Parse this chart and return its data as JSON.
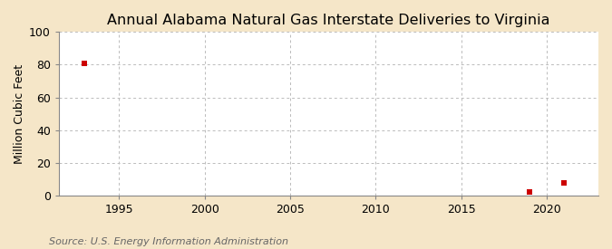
{
  "title": "Annual Alabama Natural Gas Interstate Deliveries to Virginia",
  "ylabel": "Million Cubic Feet",
  "source": "Source: U.S. Energy Information Administration",
  "figure_bg_color": "#f5e6c8",
  "plot_bg_color": "#ffffff",
  "grid_color": "#bbbbbb",
  "data_points": [
    {
      "year": 1993,
      "value": 81.0
    },
    {
      "year": 2019,
      "value": 2.0
    },
    {
      "year": 2021,
      "value": 8.0
    }
  ],
  "marker_color": "#cc0000",
  "marker_size": 5,
  "xlim": [
    1991.5,
    2023
  ],
  "ylim": [
    0,
    100
  ],
  "xticks": [
    1995,
    2000,
    2005,
    2010,
    2015,
    2020
  ],
  "yticks": [
    0,
    20,
    40,
    60,
    80,
    100
  ],
  "title_fontsize": 11.5,
  "axis_fontsize": 9,
  "tick_fontsize": 9,
  "source_fontsize": 8
}
